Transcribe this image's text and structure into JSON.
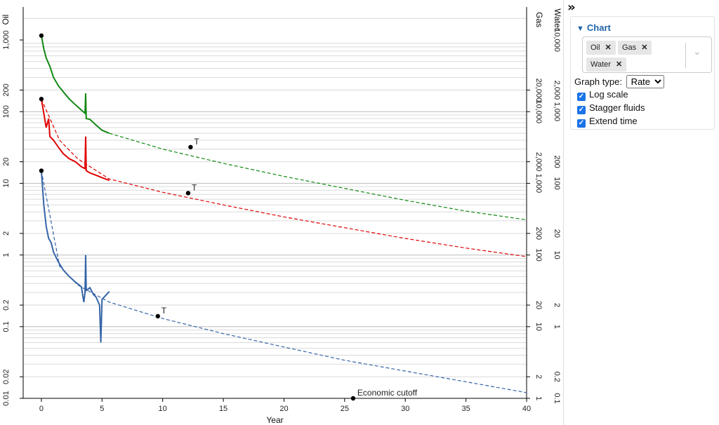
{
  "panel": {
    "collapse_icon": "»",
    "header": "Chart",
    "fluids": [
      {
        "label": "Oil"
      },
      {
        "label": "Gas"
      },
      {
        "label": "Water"
      }
    ],
    "graph_type_label": "Graph type:",
    "graph_type_value": "Rate",
    "options": [
      {
        "label": "Log scale",
        "checked": true
      },
      {
        "label": "Stagger fluids",
        "checked": true
      },
      {
        "label": "Extend time",
        "checked": true
      }
    ]
  },
  "chart_data": {
    "type": "line",
    "xlabel": "Year",
    "xlim": [
      -1.5,
      40
    ],
    "x_ticks": [
      "0",
      "5",
      "10",
      "15",
      "20",
      "25",
      "30",
      "35",
      "40"
    ],
    "log_scale": true,
    "grid": true,
    "axes": [
      {
        "label": "Oil",
        "side": "left",
        "ticks": [
          "0.01",
          "0.02",
          "0.1",
          "0.2",
          "1",
          "2",
          "10",
          "20",
          "100",
          "200",
          "1,000"
        ]
      },
      {
        "label": "Gas",
        "side": "right",
        "ticks": [
          "1",
          "2",
          "10",
          "20",
          "100",
          "200",
          "1,000",
          "2,000",
          "10,000",
          "20,000"
        ]
      },
      {
        "label": "Water",
        "side": "right",
        "ticks": [
          "0.1",
          "0.2",
          "1",
          "2",
          "10",
          "20",
          "100",
          "200",
          "1,000",
          "2,000",
          "10,000"
        ]
      }
    ],
    "series": [
      {
        "name": "Gas",
        "color": "#118811",
        "historical": [
          [
            0,
            1150
          ],
          [
            0.2,
            750
          ],
          [
            0.4,
            560
          ],
          [
            0.7,
            430
          ],
          [
            1.0,
            300
          ],
          [
            1.4,
            230
          ],
          [
            1.8,
            190
          ],
          [
            2.3,
            150
          ],
          [
            2.8,
            125
          ],
          [
            3.3,
            105
          ],
          [
            3.6,
            95
          ],
          [
            3.65,
            180
          ],
          [
            3.7,
            80
          ],
          [
            4.0,
            78
          ],
          [
            4.5,
            65
          ],
          [
            5.0,
            55
          ],
          [
            5.6,
            50
          ]
        ],
        "forecast": [
          [
            5.6,
            50
          ],
          [
            10,
            30
          ],
          [
            15,
            19
          ],
          [
            20,
            12.5
          ],
          [
            25,
            8.5
          ],
          [
            30,
            5.8
          ],
          [
            35,
            4.1
          ],
          [
            40,
            3.1
          ]
        ],
        "marker_start": [
          0,
          1150
        ],
        "marker_t": [
          12.3,
          32
        ]
      },
      {
        "name": "Water",
        "color": "#e00000",
        "historical": [
          [
            0,
            150
          ],
          [
            0.2,
            95
          ],
          [
            0.4,
            60
          ],
          [
            0.6,
            80
          ],
          [
            0.7,
            45
          ],
          [
            1.0,
            40
          ],
          [
            1.4,
            32
          ],
          [
            1.8,
            26
          ],
          [
            2.3,
            22
          ],
          [
            2.8,
            20
          ],
          [
            3.3,
            17
          ],
          [
            3.6,
            16
          ],
          [
            3.65,
            45
          ],
          [
            3.7,
            15
          ],
          [
            4.0,
            14
          ],
          [
            4.5,
            13
          ],
          [
            5.0,
            12
          ],
          [
            5.6,
            11
          ]
        ],
        "forecast": [
          [
            0,
            150
          ],
          [
            1.5,
            40
          ],
          [
            3,
            22
          ],
          [
            5.6,
            11.5
          ],
          [
            10,
            7.5
          ],
          [
            15,
            5
          ],
          [
            20,
            3.4
          ],
          [
            25,
            2.4
          ],
          [
            30,
            1.7
          ],
          [
            35,
            1.25
          ],
          [
            40,
            0.95
          ]
        ],
        "marker_start": [
          0,
          150
        ],
        "marker_t": [
          12.1,
          7.3
        ]
      },
      {
        "name": "Oil",
        "color": "#3565a8",
        "historical": [
          [
            0,
            15
          ],
          [
            0.2,
            5
          ],
          [
            0.4,
            2.5
          ],
          [
            0.6,
            1.7
          ],
          [
            0.8,
            1.5
          ],
          [
            1.0,
            1.1
          ],
          [
            1.4,
            0.8
          ],
          [
            1.8,
            0.62
          ],
          [
            2.3,
            0.5
          ],
          [
            2.8,
            0.42
          ],
          [
            3.3,
            0.36
          ],
          [
            3.5,
            0.22
          ],
          [
            3.6,
            0.3
          ],
          [
            3.65,
            1.0
          ],
          [
            3.7,
            0.32
          ],
          [
            4.0,
            0.35
          ],
          [
            4.3,
            0.28
          ],
          [
            4.5,
            0.26
          ],
          [
            4.8,
            0.2
          ],
          [
            4.9,
            0.06
          ],
          [
            5.0,
            0.24
          ],
          [
            5.6,
            0.31
          ]
        ],
        "forecast": [
          [
            0,
            15
          ],
          [
            1.5,
            0.7
          ],
          [
            3,
            0.38
          ],
          [
            5.6,
            0.22
          ],
          [
            10,
            0.13
          ],
          [
            15,
            0.08
          ],
          [
            20,
            0.052
          ],
          [
            25,
            0.034
          ],
          [
            30,
            0.024
          ],
          [
            35,
            0.017
          ],
          [
            40,
            0.012
          ]
        ],
        "marker_start": [
          0,
          15
        ],
        "marker_t": [
          9.6,
          0.14
        ]
      }
    ],
    "annotations": [
      {
        "text": "T"
      },
      {
        "text": "T"
      },
      {
        "text": "T"
      },
      {
        "text": "Economic cutoff",
        "x": 25.7,
        "y": 0.01
      }
    ]
  }
}
